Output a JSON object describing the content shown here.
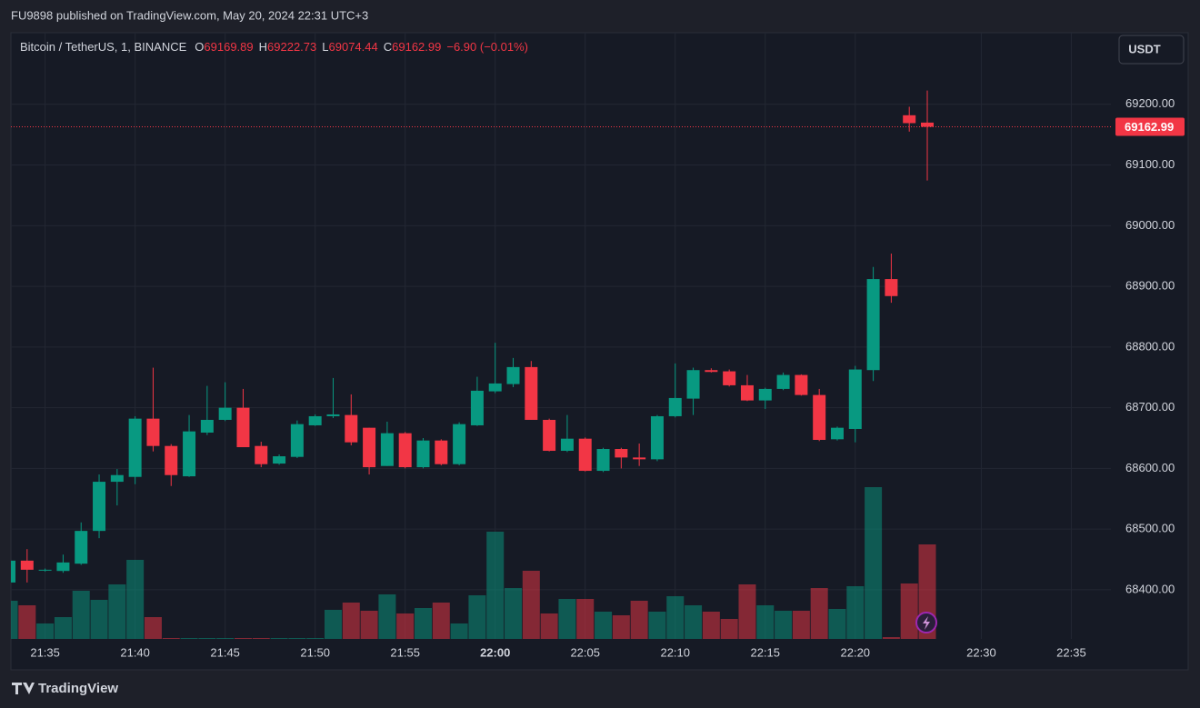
{
  "header": {
    "publisher": "FU9898 published on TradingView.com, May 20, 2024 22:31 UTC+3"
  },
  "footer": {
    "brand": "TradingView"
  },
  "chart_data": {
    "type": "candlestick",
    "title": "Bitcoin / TetherUS, 1, BINANCE",
    "ohlc_prefixes": [
      "O",
      "H",
      "L",
      "C"
    ],
    "change_label": "−6.90 (−0.01%)",
    "currency": "USDT",
    "up_color": "#089981",
    "down_color": "#f23645",
    "grid": true,
    "last_price_line": true,
    "open": [
      68412,
      68448,
      68432,
      68431,
      68443,
      68497,
      68578,
      68586,
      68682,
      68637,
      68587,
      68659,
      68680,
      68700,
      68637,
      68608,
      68619,
      68671,
      68686,
      68688,
      68667,
      68604,
      68658,
      68602,
      68646,
      68607,
      68671,
      68727,
      68739,
      68767,
      68680,
      68629,
      68649,
      68596,
      68632,
      68618,
      68615,
      68686,
      68715,
      68762,
      68760,
      68737,
      68712,
      68731,
      68754,
      68721,
      68648,
      68665,
      68762,
      68912,
      69182,
      69169.89
    ],
    "high": [
      68448,
      68467,
      68435,
      68458,
      68511,
      68590,
      68599,
      68686,
      68766,
      68640,
      68688,
      68736,
      68742,
      68731,
      68644,
      68623,
      68679,
      68689,
      68749,
      68722,
      68667,
      68677,
      68660,
      68650,
      68648,
      68676,
      68751,
      68807,
      68782,
      68777,
      68682,
      68688,
      68651,
      68634,
      68634,
      68641,
      68688,
      68773,
      68766,
      68765,
      68763,
      68754,
      68733,
      68758,
      68755,
      68731,
      68669,
      68769,
      68932,
      68954,
      69196,
      69222.73
    ],
    "low": [
      68412,
      68412,
      68430,
      68428,
      68441,
      68485,
      68539,
      68574,
      68628,
      68571,
      68586,
      68655,
      68678,
      68635,
      68602,
      68606,
      68617,
      68670,
      68683,
      68638,
      68590,
      68604,
      68600,
      68600,
      68605,
      68605,
      68670,
      68724,
      68734,
      68680,
      68628,
      68627,
      68595,
      68594,
      68600,
      68604,
      68612,
      68684,
      68688,
      68758,
      68735,
      68711,
      68698,
      68729,
      68720,
      68645,
      68646,
      68643,
      68744,
      68873,
      69155,
      69074.44
    ],
    "close": [
      68448,
      68433,
      68433,
      68445,
      68497,
      68578,
      68589,
      68682,
      68637,
      68589,
      68661,
      68680,
      68700,
      68635,
      68607,
      68620,
      68673,
      68686,
      68689,
      68643,
      68602,
      68658,
      68602,
      68646,
      68607,
      68673,
      68728,
      68740,
      68767,
      68680,
      68629,
      68649,
      68596,
      68632,
      68618,
      68615,
      68686,
      68716,
      68762,
      68759,
      68737,
      68712,
      68731,
      68754,
      68721,
      68647,
      68667,
      68763,
      68912,
      68884,
      69169,
      69162.99
    ],
    "volume": [
      42,
      37,
      17,
      24,
      53,
      43,
      60,
      87,
      24,
      1,
      1,
      1,
      1,
      1,
      1,
      1,
      1,
      1,
      32,
      40,
      31,
      49,
      28,
      34,
      40,
      17,
      48,
      118,
      56,
      75,
      28,
      44,
      44,
      30,
      26,
      42,
      30,
      47,
      37,
      30,
      22,
      60,
      37,
      31,
      31,
      56,
      33,
      58,
      167,
      2,
      61,
      104
    ],
    "volume_lim": [
      0,
      200
    ],
    "ylim": [
      68319,
      69318
    ],
    "yticks": [
      {
        "value": 68400,
        "label": "68400.00"
      },
      {
        "value": 68500,
        "label": "68500.00"
      },
      {
        "value": 68600,
        "label": "68600.00"
      },
      {
        "value": 68700,
        "label": "68700.00"
      },
      {
        "value": 68800,
        "label": "68800.00"
      },
      {
        "value": 68900,
        "label": "68900.00"
      },
      {
        "value": 69000,
        "label": "69000.00"
      },
      {
        "value": 69100,
        "label": "69100.00"
      },
      {
        "value": 69200,
        "label": "69200.00"
      }
    ],
    "xlim": [
      0.1,
      61.2
    ],
    "xticks": [
      {
        "value": 2,
        "label": "21:35"
      },
      {
        "value": 7,
        "label": "21:40"
      },
      {
        "value": 12,
        "label": "21:45"
      },
      {
        "value": 17,
        "label": "21:50"
      },
      {
        "value": 22,
        "label": "21:55"
      },
      {
        "value": 27,
        "label": "22:00",
        "bold": true
      },
      {
        "value": 32,
        "label": "22:05"
      },
      {
        "value": 37,
        "label": "22:10"
      },
      {
        "value": 42,
        "label": "22:15"
      },
      {
        "value": 47,
        "label": "22:20"
      },
      {
        "value": 54,
        "label": "22:30"
      },
      {
        "value": 59,
        "label": "22:35"
      }
    ]
  }
}
